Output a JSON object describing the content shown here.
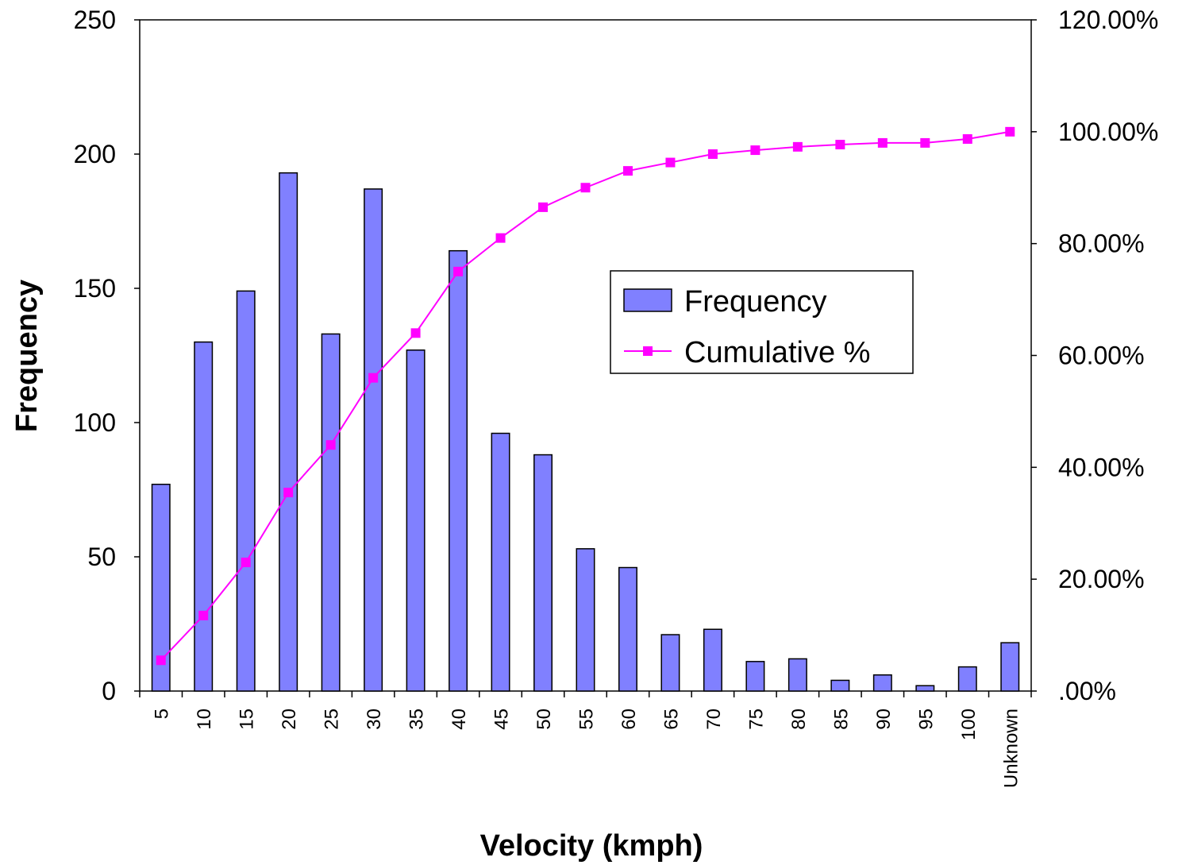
{
  "chart_data": {
    "type": "bar",
    "xlabel": "Velocity (kmph)",
    "ylabel": "Frequency",
    "categories": [
      "5",
      "10",
      "15",
      "20",
      "25",
      "30",
      "35",
      "40",
      "45",
      "50",
      "55",
      "60",
      "65",
      "70",
      "75",
      "80",
      "85",
      "90",
      "95",
      "100",
      "Unknown"
    ],
    "series": [
      {
        "name": "Frequency",
        "type": "bar",
        "axis": "left",
        "color": "#8080ff",
        "values": [
          77,
          130,
          149,
          193,
          133,
          187,
          127,
          164,
          96,
          88,
          53,
          46,
          21,
          23,
          11,
          12,
          4,
          6,
          2,
          9,
          18
        ]
      },
      {
        "name": "Cumulative %",
        "type": "line",
        "axis": "right",
        "color": "#ff00ff",
        "marker": "square",
        "values": [
          5.5,
          13.5,
          23.0,
          35.5,
          44.0,
          56.0,
          64.0,
          75.0,
          81.0,
          86.5,
          90.0,
          93.0,
          94.5,
          96.0,
          96.7,
          97.3,
          97.7,
          98.0,
          98.0,
          98.7,
          100.0
        ]
      }
    ],
    "ylim": [
      0,
      250
    ],
    "yticks": [
      "0",
      "50",
      "100",
      "150",
      "200",
      "250"
    ],
    "y2lim": [
      0,
      120
    ],
    "y2ticks": [
      ".00%",
      "20.00%",
      "40.00%",
      "60.00%",
      "80.00%",
      "100.00%",
      "120.00%"
    ],
    "grid": false,
    "legend_position": "center-right"
  }
}
